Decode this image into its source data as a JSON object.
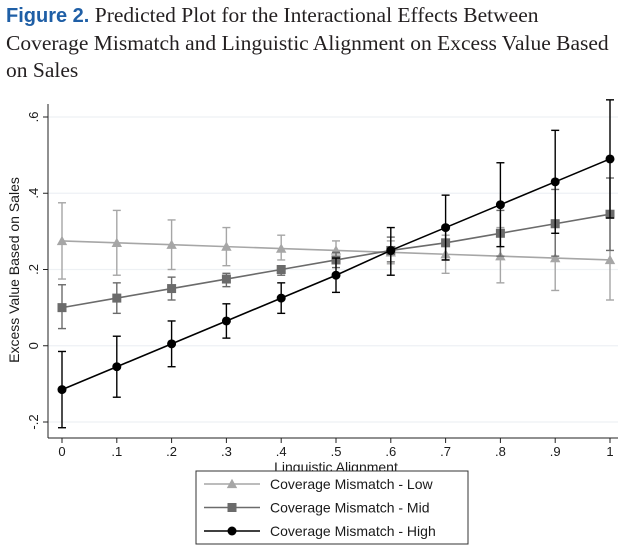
{
  "caption": {
    "label": "Figure 2.",
    "text": "Predicted Plot for the Interactional Effects Between Coverage Mismatch and Linguistic Alignment on Excess Value Based on Sales"
  },
  "chart_data": {
    "type": "line",
    "title": "",
    "xlabel": "Linguistic Alignment",
    "ylabel": "Excess Value Based on Sales",
    "xlim": [
      0,
      1
    ],
    "ylim": [
      -0.2,
      0.6
    ],
    "x": [
      0,
      0.1,
      0.2,
      0.3,
      0.4,
      0.5,
      0.6,
      0.7,
      0.8,
      0.9,
      1
    ],
    "x_tick_labels": [
      "0",
      ".1",
      ".2",
      ".3",
      ".4",
      ".5",
      ".6",
      ".7",
      ".8",
      ".9",
      "1"
    ],
    "y_ticks": [
      -0.2,
      0,
      0.2,
      0.4,
      0.6
    ],
    "y_tick_labels": [
      "-.2",
      "0",
      ".2",
      ".4",
      ".6"
    ],
    "grid": "horizontal",
    "legend_position": "bottom",
    "series": [
      {
        "name": "Coverage Mismatch - Low",
        "color": "#a6a6a6",
        "marker": "triangle",
        "values": [
          0.275,
          0.27,
          0.265,
          0.26,
          0.255,
          0.25,
          0.245,
          0.24,
          0.235,
          0.23,
          0.225
        ],
        "ci_low": [
          0.175,
          0.185,
          0.2,
          0.21,
          0.225,
          0.23,
          0.215,
          0.19,
          0.165,
          0.145,
          0.12
        ],
        "ci_high": [
          0.375,
          0.355,
          0.33,
          0.31,
          0.29,
          0.275,
          0.275,
          0.29,
          0.31,
          0.33,
          0.35
        ]
      },
      {
        "name": "Coverage Mismatch - Mid",
        "color": "#6b6b6b",
        "marker": "square",
        "values": [
          0.1,
          0.125,
          0.15,
          0.175,
          0.2,
          0.225,
          0.25,
          0.27,
          0.295,
          0.32,
          0.345
        ],
        "ci_low": [
          0.045,
          0.085,
          0.12,
          0.155,
          0.185,
          0.205,
          0.22,
          0.225,
          0.235,
          0.235,
          0.25
        ],
        "ci_high": [
          0.16,
          0.165,
          0.18,
          0.19,
          0.21,
          0.245,
          0.285,
          0.315,
          0.355,
          0.41,
          0.44
        ]
      },
      {
        "name": "Coverage Mismatch - High",
        "color": "#000000",
        "marker": "circle",
        "values": [
          -0.115,
          -0.055,
          0.005,
          0.065,
          0.125,
          0.185,
          0.25,
          0.31,
          0.37,
          0.43,
          0.49
        ],
        "ci_low": [
          -0.215,
          -0.135,
          -0.055,
          0.02,
          0.085,
          0.14,
          0.185,
          0.225,
          0.26,
          0.295,
          0.335
        ],
        "ci_high": [
          -0.015,
          0.025,
          0.065,
          0.11,
          0.165,
          0.23,
          0.31,
          0.395,
          0.48,
          0.565,
          0.645
        ]
      }
    ]
  }
}
